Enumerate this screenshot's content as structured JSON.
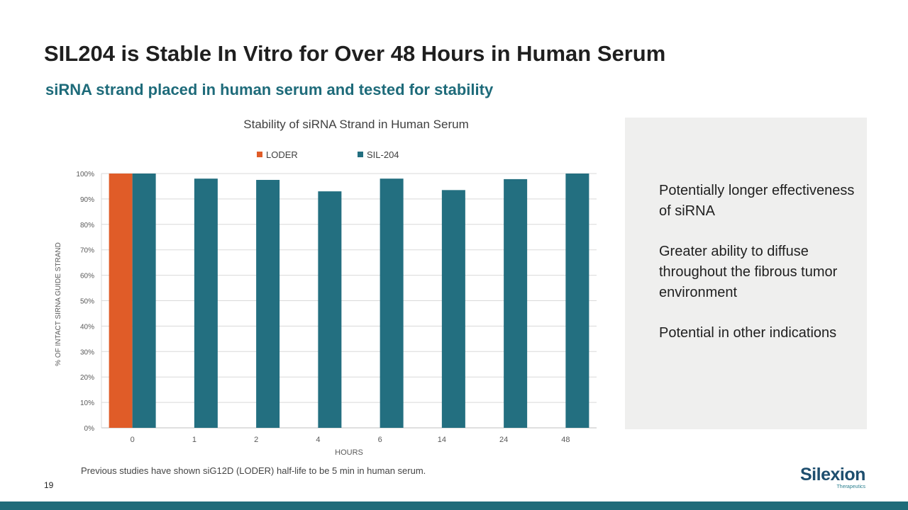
{
  "slide": {
    "title": "SIL204 is Stable In Vitro for Over 48 Hours in Human Serum",
    "subtitle": "siRNA strand placed in human serum and tested for stability",
    "footnote": "Previous studies have shown siG12D (LODER) half-life to be 5 min in human serum.",
    "page_number": "19"
  },
  "side_panel": {
    "bullets": [
      "Potentially longer effectiveness of siRNA",
      "Greater ability to diffuse throughout the fibrous tumor environment",
      "Potential in other indications"
    ]
  },
  "logo": {
    "name": "Silexion",
    "tagline": "Therapeutics"
  },
  "colors": {
    "loder": "#e05c28",
    "sil204": "#236f80",
    "accent": "#1e6b7a",
    "bar": "#1f6b79"
  },
  "chart_data": {
    "type": "bar",
    "title": "Stability of siRNA Strand in Human Serum",
    "xlabel": "HOURS",
    "ylabel": "% OF INTACT SIRNA GUIDE STRAND",
    "categories": [
      "0",
      "1",
      "2",
      "4",
      "6",
      "14",
      "24",
      "48"
    ],
    "series": [
      {
        "name": "LODER",
        "values": [
          100,
          null,
          null,
          null,
          null,
          null,
          null,
          null
        ]
      },
      {
        "name": "SIL-204",
        "values": [
          100,
          98,
          97.5,
          93,
          98,
          93.5,
          97.8,
          100
        ]
      }
    ],
    "ylim": [
      0,
      100
    ],
    "yticks": [
      "0%",
      "10%",
      "20%",
      "30%",
      "40%",
      "50%",
      "60%",
      "70%",
      "80%",
      "90%",
      "100%"
    ],
    "legend": "top-center",
    "grid": true
  }
}
